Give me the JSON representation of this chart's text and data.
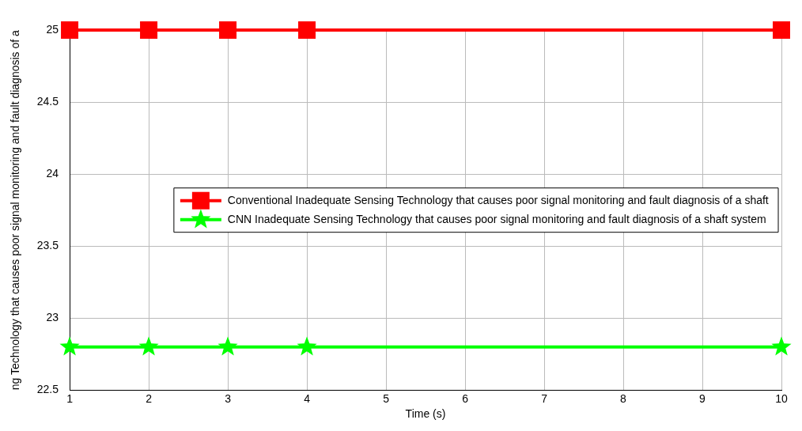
{
  "chart_data": {
    "type": "line",
    "xlabel": "Time (s)",
    "ylabel": "ng Technology that causes poor signal monitoring and fault diagnosis of a",
    "x": [
      1,
      2,
      3,
      4,
      10
    ],
    "series": [
      {
        "name": "Conventional Inadequate Sensing Technology that causes poor signal monitoring and fault diagnosis of a shaft",
        "color": "#ff0000",
        "marker": "square",
        "values": [
          25,
          25,
          25,
          25,
          25
        ]
      },
      {
        "name": "CNN Inadequate Sensing Technology that causes poor signal monitoring and fault diagnosis of a shaft system",
        "color": "#00ff00",
        "marker": "star",
        "values": [
          22.8,
          22.8,
          22.8,
          22.8,
          22.8
        ]
      }
    ],
    "xlim": [
      1,
      10
    ],
    "xticks": [
      1,
      2,
      3,
      4,
      5,
      6,
      7,
      8,
      9,
      10
    ],
    "ylim": [
      22.5,
      25
    ],
    "yticks": [
      22.5,
      23,
      23.5,
      24,
      24.5,
      25
    ],
    "grid": true,
    "legend": "right",
    "line_style": "solid"
  }
}
